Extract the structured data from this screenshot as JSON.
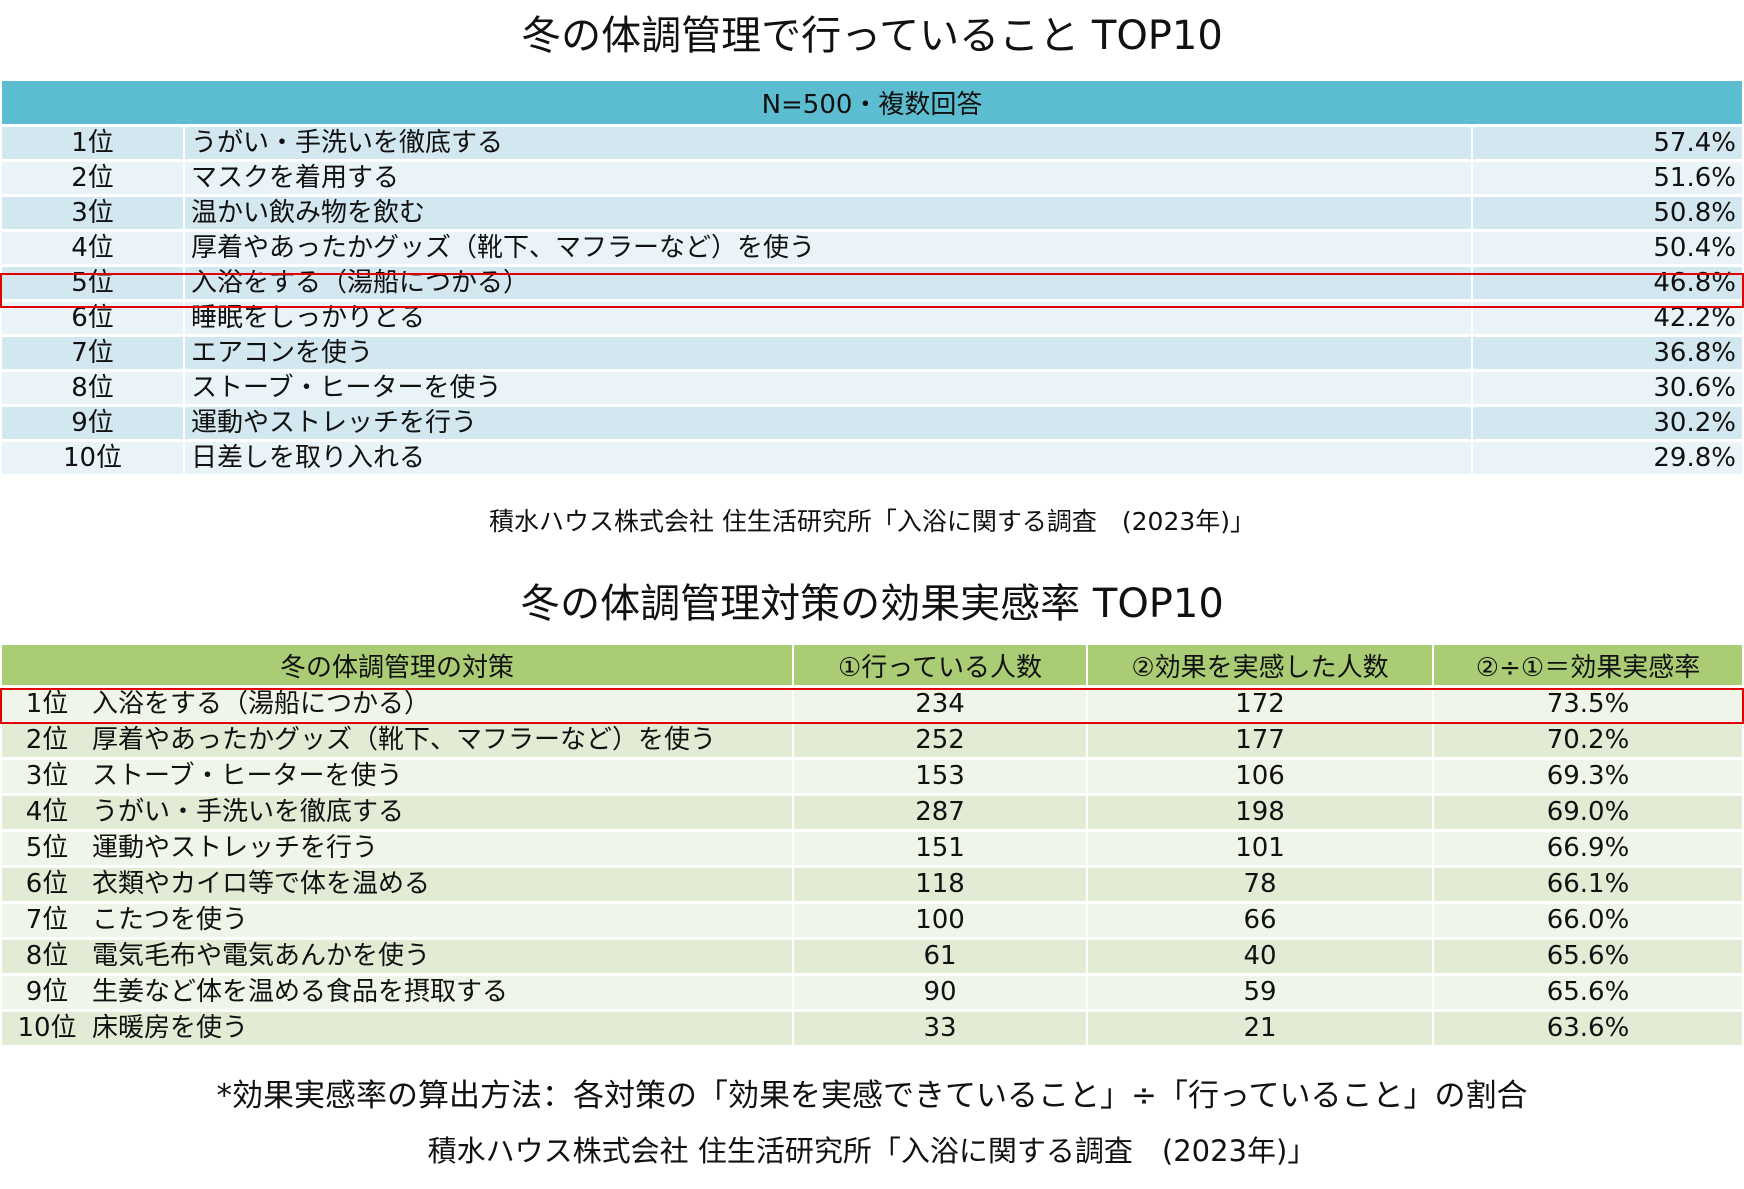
{
  "table1": {
    "title": "冬の体調管理で行っていること TOP10",
    "header": "N=500・複数回答",
    "rows": [
      {
        "rank": "1位",
        "item": "うがい・手洗いを徹底する",
        "pct": "57.4%"
      },
      {
        "rank": "2位",
        "item": "マスクを着用する",
        "pct": "51.6%"
      },
      {
        "rank": "3位",
        "item": "温かい飲み物を飲む",
        "pct": "50.8%"
      },
      {
        "rank": "4位",
        "item": "厚着やあったかグッズ（靴下、マフラーなど）を使う",
        "pct": "50.4%"
      },
      {
        "rank": "5位",
        "item": "入浴をする（湯船につかる）",
        "pct": "46.8%"
      },
      {
        "rank": "6位",
        "item": "睡眠をしっかりとる",
        "pct": "42.2%"
      },
      {
        "rank": "7位",
        "item": "エアコンを使う",
        "pct": "36.8%"
      },
      {
        "rank": "8位",
        "item": "ストーブ・ヒーターを使う",
        "pct": "30.6%"
      },
      {
        "rank": "9位",
        "item": "運動やストレッチを行う",
        "pct": "30.2%"
      },
      {
        "rank": "10位",
        "item": "日差しを取り入れる",
        "pct": "29.8%"
      }
    ],
    "highlight_rank": "5位",
    "source": "積水ハウス株式会社 住生活研究所「入浴に関する調査　(2023年)」"
  },
  "table2": {
    "title": "冬の体調管理対策の効果実感率 TOP10",
    "headers": [
      "冬の体調管理の対策",
      "①行っている人数",
      "②効果を実感した人数",
      "②÷①＝効果実感率"
    ],
    "rows": [
      {
        "rank": "1位",
        "item": "入浴をする（湯船につかる）",
        "doing": "234",
        "felt": "172",
        "rate": "73.5%"
      },
      {
        "rank": "2位",
        "item": "厚着やあったかグッズ（靴下、マフラーなど）を使う",
        "doing": "252",
        "felt": "177",
        "rate": "70.2%"
      },
      {
        "rank": "3位",
        "item": "ストーブ・ヒーターを使う",
        "doing": "153",
        "felt": "106",
        "rate": "69.3%"
      },
      {
        "rank": "4位",
        "item": "うがい・手洗いを徹底する",
        "doing": "287",
        "felt": "198",
        "rate": "69.0%"
      },
      {
        "rank": "5位",
        "item": "運動やストレッチを行う",
        "doing": "151",
        "felt": "101",
        "rate": "66.9%"
      },
      {
        "rank": "6位",
        "item": "衣類やカイロ等で体を温める",
        "doing": "118",
        "felt": "78",
        "rate": "66.1%"
      },
      {
        "rank": "7位",
        "item": "こたつを使う",
        "doing": "100",
        "felt": "66",
        "rate": "66.0%"
      },
      {
        "rank": "8位",
        "item": "電気毛布や電気あんかを使う",
        "doing": "61",
        "felt": "40",
        "rate": "65.6%"
      },
      {
        "rank": "9位",
        "item": "生姜など体を温める食品を摂取する",
        "doing": "90",
        "felt": "59",
        "rate": "65.6%"
      },
      {
        "rank": "10位",
        "item": "床暖房を使う",
        "doing": "33",
        "felt": "21",
        "rate": "63.6%"
      }
    ],
    "highlight_rank": "1位",
    "note": "*効果実感率の算出方法：各対策の「効果を実感できていること」÷「行っていること」の割合",
    "source": "積水ハウス株式会社 住生活研究所「入浴に関する調査　(2023年)」"
  },
  "colors": {
    "table1_header": "#5dbdd0",
    "table2_header": "#a9cc74",
    "highlight": "#e00000"
  }
}
